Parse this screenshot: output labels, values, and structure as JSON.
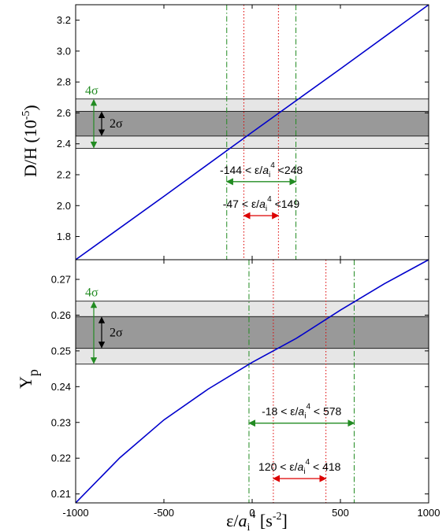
{
  "chart_data": [
    {
      "type": "line",
      "ylabel": "D/H (10",
      "ylabel_exp": "-5",
      "ylabel_close": ")",
      "xlim": [
        -1000,
        1000
      ],
      "ylim": [
        1.65,
        3.3
      ],
      "yticks": [
        1.8,
        2.0,
        2.2,
        2.4,
        2.6,
        2.8,
        3.0,
        3.2
      ],
      "ytick_labels": [
        "1.8",
        "2.0",
        "2.2",
        "2.4",
        "2.6",
        "2.8",
        "3.0",
        "3.2"
      ],
      "series": [
        {
          "color": "#0000cc",
          "x": [
            -1000,
            -500,
            0,
            500,
            1000
          ],
          "y": [
            1.65,
            2.06,
            2.475,
            2.885,
            3.3
          ]
        }
      ],
      "bands": [
        {
          "label": "4σ",
          "lower": 2.37,
          "upper": 2.69,
          "color": "#e6e6e6",
          "label_color": "#228b22"
        },
        {
          "label": "2σ",
          "lower": 2.45,
          "upper": 2.61,
          "color": "#999999",
          "label_color": "#000000"
        }
      ],
      "vlines": [
        {
          "x": -144,
          "color": "#228b22",
          "style": "dashdot"
        },
        {
          "x": 248,
          "color": "#228b22",
          "style": "dashdot"
        },
        {
          "x": -47,
          "color": "#dd0000",
          "style": "dotted"
        },
        {
          "x": 149,
          "color": "#dd0000",
          "style": "dotted"
        }
      ],
      "intervals": [
        {
          "low": -144,
          "high": 248,
          "y": 2.155,
          "color": "#228b22",
          "text": {
            "lo": "-144",
            "lt": "<",
            "eps": "ε/",
            "a": "a",
            "sub": "i",
            "sup": "4",
            "gt": "<",
            "hi": "248"
          }
        },
        {
          "low": -47,
          "high": 149,
          "y": 1.935,
          "color": "#dd0000",
          "text": {
            "lo": "-47",
            "lt": "<",
            "eps": "ε/",
            "a": "a",
            "sub": "i",
            "sup": "4",
            "gt": "<",
            "hi": "149"
          }
        }
      ]
    },
    {
      "type": "line",
      "ylabel": "Y",
      "ylabel_sub": "p",
      "xlabel": {
        "eps": "ε/",
        "a": "a",
        "sub": "i",
        "sup": "4",
        "unit": " [s",
        "unit_sup": "-2",
        "unit_close": "]"
      },
      "xlim": [
        -1000,
        1000
      ],
      "xticks": [
        -1000,
        -500,
        0,
        500,
        1000
      ],
      "xtick_labels": [
        "-1000",
        "-500",
        "0",
        "500",
        "1000"
      ],
      "ylim": [
        0.2075,
        0.2755
      ],
      "yticks": [
        0.21,
        0.22,
        0.23,
        0.24,
        0.25,
        0.26,
        0.27
      ],
      "ytick_labels": [
        "0.21",
        "0.22",
        "0.23",
        "0.24",
        "0.25",
        "0.26",
        "0.27"
      ],
      "series": [
        {
          "color": "#0000cc",
          "x": [
            -1000,
            -750,
            -500,
            -250,
            0,
            250,
            500,
            750,
            1000
          ],
          "y": [
            0.2075,
            0.2201,
            0.2307,
            0.2393,
            0.2468,
            0.2535,
            0.2614,
            0.2688,
            0.2755
          ]
        }
      ],
      "bands": [
        {
          "label": "4σ",
          "lower": 0.2463,
          "upper": 0.2639,
          "color": "#e6e6e6",
          "label_color": "#228b22"
        },
        {
          "label": "2σ",
          "lower": 0.2507,
          "upper": 0.2596,
          "color": "#999999",
          "label_color": "#000000"
        }
      ],
      "vlines": [
        {
          "x": -18,
          "color": "#228b22",
          "style": "dashdot"
        },
        {
          "x": 578,
          "color": "#228b22",
          "style": "dashdot"
        },
        {
          "x": 120,
          "color": "#dd0000",
          "style": "dotted"
        },
        {
          "x": 418,
          "color": "#dd0000",
          "style": "dotted"
        }
      ],
      "intervals": [
        {
          "low": -18,
          "high": 578,
          "y": 0.2298,
          "color": "#228b22",
          "text": {
            "lo": "-18",
            "lt": "<",
            "eps": "ε/",
            "a": "a",
            "sub": "i",
            "sup": "4",
            "gt": "<",
            "hi": "578"
          }
        },
        {
          "low": 120,
          "high": 418,
          "y": 0.2143,
          "color": "#dd0000",
          "text": {
            "lo": "120",
            "lt": "<",
            "eps": "ε/",
            "a": "a",
            "sub": "i",
            "sup": "4",
            "gt": "<",
            "hi": "418"
          }
        }
      ]
    }
  ]
}
